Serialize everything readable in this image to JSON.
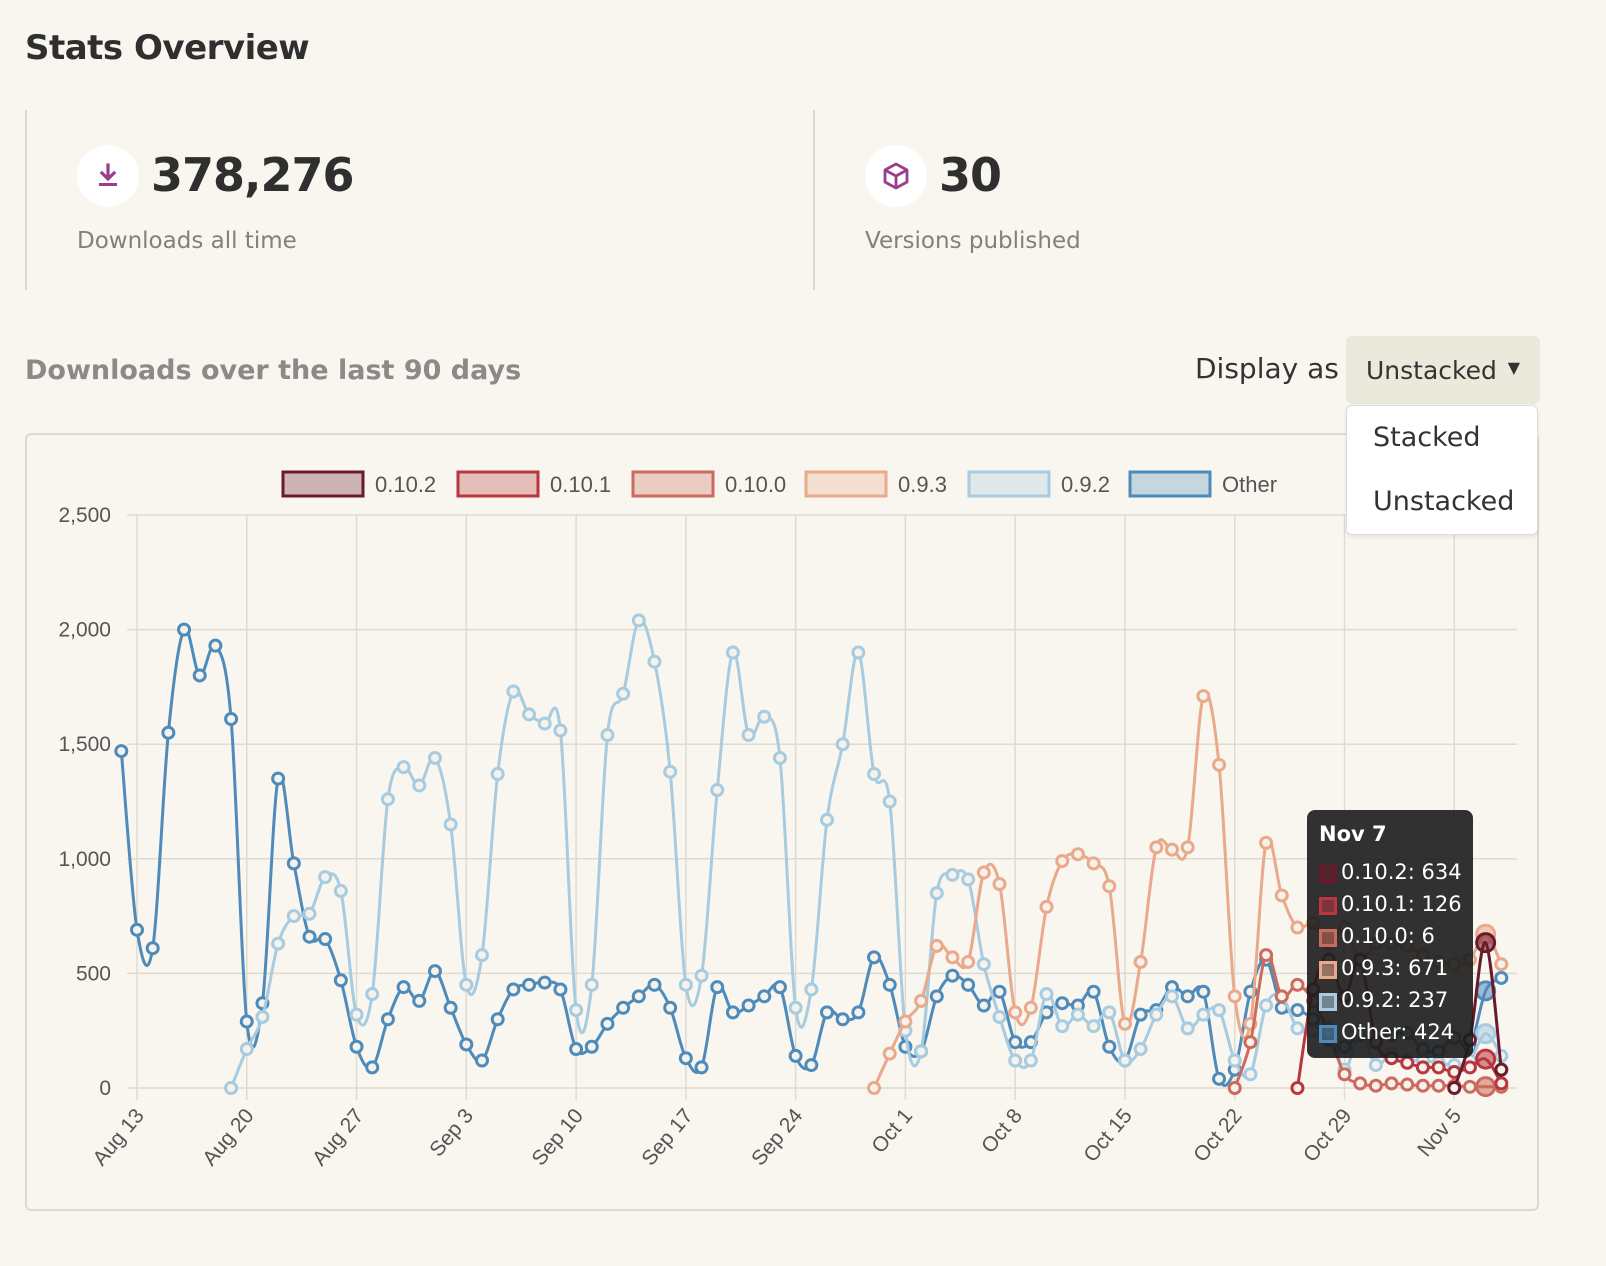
{
  "page": {
    "title": "Stats Overview"
  },
  "stats": [
    {
      "value": "378,276",
      "label": "Downloads all time",
      "icon": "download-icon"
    },
    {
      "value": "30",
      "label": "Versions published",
      "icon": "package-cube-icon"
    }
  ],
  "section": {
    "title": "Downloads over the last 90 days",
    "display_label": "Display as",
    "selected": "Unstacked",
    "options": [
      "Stacked",
      "Unstacked"
    ]
  },
  "colors": {
    "0.10.2": "#6b1a2c",
    "0.10.1": "#b8373f",
    "0.10.0": "#cc6b5d",
    "0.9.3": "#e9a98a",
    "0.9.2": "#a7cbe0",
    "Other": "#4f8bba",
    "accent": "#9b3d8c"
  },
  "tooltip": {
    "date": "Nov 7",
    "rows": [
      {
        "label": "0.10.2: 634",
        "series": "0.10.2"
      },
      {
        "label": "0.10.1: 126",
        "series": "0.10.1"
      },
      {
        "label": "0.10.0: 6",
        "series": "0.10.0"
      },
      {
        "label": "0.9.3: 671",
        "series": "0.9.3"
      },
      {
        "label": "0.9.2: 237",
        "series": "0.9.2"
      },
      {
        "label": "Other: 424",
        "series": "Other"
      }
    ]
  },
  "chart_data": {
    "type": "line",
    "title": "",
    "xlabel": "",
    "ylabel": "",
    "ylim": [
      0,
      2500
    ],
    "yticks": [
      "0",
      "500",
      "1,000",
      "1,500",
      "2,000",
      "2,500"
    ],
    "ytick_values": [
      0,
      500,
      1000,
      1500,
      2000,
      2500
    ],
    "xticks": [
      "Aug 13",
      "Aug 20",
      "Aug 27",
      "Sep 3",
      "Sep 10",
      "Sep 17",
      "Sep 24",
      "Oct 1",
      "Oct 8",
      "Oct 15",
      "Oct 22",
      "Oct 29",
      "Nov 5"
    ],
    "xtick_values": [
      "2018-08-13",
      "2018-08-20",
      "2018-08-27",
      "2018-09-03",
      "2018-09-10",
      "2018-09-17",
      "2018-09-24",
      "2018-10-01",
      "2018-10-08",
      "2018-10-15",
      "2018-10-22",
      "2018-10-29",
      "2018-11-05"
    ],
    "x_range": [
      "2018-08-13",
      "2018-11-09"
    ],
    "grid": true,
    "legend": "top",
    "series": [
      {
        "name": "Other",
        "dates": [
          "2018-08-12",
          "2018-08-13",
          "2018-08-14",
          "2018-08-15",
          "2018-08-16",
          "2018-08-17",
          "2018-08-18",
          "2018-08-19",
          "2018-08-20",
          "2018-08-21",
          "2018-08-22",
          "2018-08-23",
          "2018-08-24",
          "2018-08-25",
          "2018-08-26",
          "2018-08-27",
          "2018-08-28",
          "2018-08-29",
          "2018-08-30",
          "2018-08-31",
          "2018-09-01",
          "2018-09-02",
          "2018-09-03",
          "2018-09-04",
          "2018-09-05",
          "2018-09-06",
          "2018-09-07",
          "2018-09-08",
          "2018-09-09",
          "2018-09-10",
          "2018-09-11",
          "2018-09-12",
          "2018-09-13",
          "2018-09-14",
          "2018-09-15",
          "2018-09-16",
          "2018-09-17",
          "2018-09-18",
          "2018-09-19",
          "2018-09-20",
          "2018-09-21",
          "2018-09-22",
          "2018-09-23",
          "2018-09-24",
          "2018-09-25",
          "2018-09-26",
          "2018-09-27",
          "2018-09-28",
          "2018-09-29",
          "2018-09-30",
          "2018-10-01",
          "2018-10-02",
          "2018-10-03",
          "2018-10-04",
          "2018-10-05",
          "2018-10-06",
          "2018-10-07",
          "2018-10-08",
          "2018-10-09",
          "2018-10-10",
          "2018-10-11",
          "2018-10-12",
          "2018-10-13",
          "2018-10-14",
          "2018-10-15",
          "2018-10-16",
          "2018-10-17",
          "2018-10-18",
          "2018-10-19",
          "2018-10-20",
          "2018-10-21",
          "2018-10-22",
          "2018-10-23",
          "2018-10-24",
          "2018-10-25",
          "2018-10-26",
          "2018-10-27",
          "2018-10-28",
          "2018-10-29",
          "2018-10-30",
          "2018-10-31",
          "2018-11-01",
          "2018-11-02",
          "2018-11-03",
          "2018-11-04",
          "2018-11-05",
          "2018-11-06",
          "2018-11-07",
          "2018-11-08"
        ],
        "values": [
          1470,
          690,
          610,
          1550,
          2000,
          1800,
          1930,
          1610,
          290,
          370,
          1350,
          980,
          660,
          650,
          470,
          180,
          90,
          300,
          440,
          380,
          510,
          350,
          190,
          120,
          300,
          430,
          450,
          460,
          430,
          170,
          180,
          280,
          350,
          400,
          450,
          350,
          130,
          90,
          440,
          330,
          360,
          400,
          440,
          140,
          100,
          330,
          300,
          330,
          570,
          450,
          180,
          160,
          400,
          490,
          450,
          360,
          420,
          200,
          200,
          330,
          370,
          360,
          420,
          180,
          120,
          320,
          340,
          440,
          400,
          420,
          40,
          80,
          420,
          560,
          350,
          340,
          300,
          210,
          180,
          230,
          200,
          230,
          240,
          170,
          160,
          220,
          180,
          424,
          480
        ]
      },
      {
        "name": "0.9.2",
        "dates": [
          "2018-08-19",
          "2018-08-20",
          "2018-08-21",
          "2018-08-22",
          "2018-08-23",
          "2018-08-24",
          "2018-08-25",
          "2018-08-26",
          "2018-08-27",
          "2018-08-28",
          "2018-08-29",
          "2018-08-30",
          "2018-08-31",
          "2018-09-01",
          "2018-09-02",
          "2018-09-03",
          "2018-09-04",
          "2018-09-05",
          "2018-09-06",
          "2018-09-07",
          "2018-09-08",
          "2018-09-09",
          "2018-09-10",
          "2018-09-11",
          "2018-09-12",
          "2018-09-13",
          "2018-09-14",
          "2018-09-15",
          "2018-09-16",
          "2018-09-17",
          "2018-09-18",
          "2018-09-19",
          "2018-09-20",
          "2018-09-21",
          "2018-09-22",
          "2018-09-23",
          "2018-09-24",
          "2018-09-25",
          "2018-09-26",
          "2018-09-27",
          "2018-09-28",
          "2018-09-29",
          "2018-09-30",
          "2018-10-01",
          "2018-10-02",
          "2018-10-03",
          "2018-10-04",
          "2018-10-05",
          "2018-10-06",
          "2018-10-07",
          "2018-10-08",
          "2018-10-09",
          "2018-10-10",
          "2018-10-11",
          "2018-10-12",
          "2018-10-13",
          "2018-10-14",
          "2018-10-15",
          "2018-10-16",
          "2018-10-17",
          "2018-10-18",
          "2018-10-19",
          "2018-10-20",
          "2018-10-21",
          "2018-10-22",
          "2018-10-23",
          "2018-10-24",
          "2018-10-25",
          "2018-10-26",
          "2018-10-27",
          "2018-10-28",
          "2018-10-29",
          "2018-10-30",
          "2018-10-31",
          "2018-11-01",
          "2018-11-02",
          "2018-11-03",
          "2018-11-04",
          "2018-11-05",
          "2018-11-06",
          "2018-11-07",
          "2018-11-08"
        ],
        "values": [
          0,
          170,
          310,
          630,
          750,
          760,
          920,
          860,
          320,
          410,
          1260,
          1400,
          1320,
          1440,
          1150,
          450,
          580,
          1370,
          1730,
          1630,
          1590,
          1560,
          340,
          450,
          1540,
          1720,
          2040,
          1860,
          1380,
          450,
          490,
          1300,
          1900,
          1540,
          1620,
          1440,
          350,
          430,
          1170,
          1500,
          1900,
          1370,
          1250,
          250,
          160,
          850,
          930,
          910,
          540,
          310,
          120,
          120,
          410,
          270,
          320,
          270,
          330,
          120,
          170,
          320,
          400,
          260,
          320,
          340,
          120,
          60,
          360,
          400,
          260,
          250,
          260,
          80,
          240,
          100,
          150,
          120,
          120,
          110,
          100,
          120,
          237,
          140
        ]
      },
      {
        "name": "0.9.3",
        "dates": [
          "2018-09-29",
          "2018-09-30",
          "2018-10-01",
          "2018-10-02",
          "2018-10-03",
          "2018-10-04",
          "2018-10-05",
          "2018-10-06",
          "2018-10-07",
          "2018-10-08",
          "2018-10-09",
          "2018-10-10",
          "2018-10-11",
          "2018-10-12",
          "2018-10-13",
          "2018-10-14",
          "2018-10-15",
          "2018-10-16",
          "2018-10-17",
          "2018-10-18",
          "2018-10-19",
          "2018-10-20",
          "2018-10-21",
          "2018-10-22",
          "2018-10-23",
          "2018-10-24",
          "2018-10-25",
          "2018-10-26",
          "2018-10-27",
          "2018-10-28",
          "2018-10-29",
          "2018-10-30",
          "2018-10-31",
          "2018-11-01",
          "2018-11-02",
          "2018-11-03",
          "2018-11-04",
          "2018-11-05",
          "2018-11-06",
          "2018-11-07",
          "2018-11-08"
        ],
        "values": [
          0,
          150,
          290,
          380,
          620,
          570,
          550,
          940,
          890,
          330,
          350,
          790,
          990,
          1020,
          980,
          880,
          280,
          550,
          1050,
          1040,
          1050,
          1710,
          1410,
          400,
          280,
          1070,
          840,
          700,
          720,
          630,
          700,
          560,
          630,
          630,
          620,
          580,
          550,
          540,
          560,
          671,
          540
        ]
      },
      {
        "name": "0.10.0",
        "dates": [
          "2018-10-22",
          "2018-10-23",
          "2018-10-24",
          "2018-10-25",
          "2018-10-26",
          "2018-10-27",
          "2018-10-28",
          "2018-10-29",
          "2018-10-30",
          "2018-10-31",
          "2018-11-01",
          "2018-11-02",
          "2018-11-03",
          "2018-11-04",
          "2018-11-05",
          "2018-11-06",
          "2018-11-07",
          "2018-11-08"
        ],
        "values": [
          0,
          200,
          580,
          400,
          450,
          380,
          240,
          60,
          20,
          10,
          20,
          15,
          10,
          10,
          10,
          5,
          6,
          5
        ]
      },
      {
        "name": "0.10.1",
        "dates": [
          "2018-10-26",
          "2018-10-27",
          "2018-10-28",
          "2018-10-29",
          "2018-10-30",
          "2018-10-31",
          "2018-11-01",
          "2018-11-02",
          "2018-11-03",
          "2018-11-04",
          "2018-11-05",
          "2018-11-06",
          "2018-11-07",
          "2018-11-08"
        ],
        "values": [
          0,
          430,
          560,
          400,
          560,
          200,
          130,
          110,
          90,
          90,
          70,
          90,
          126,
          20
        ]
      },
      {
        "name": "0.10.2",
        "dates": [
          "2018-11-05",
          "2018-11-06",
          "2018-11-07",
          "2018-11-08"
        ],
        "values": [
          0,
          210,
          634,
          80
        ]
      }
    ]
  }
}
